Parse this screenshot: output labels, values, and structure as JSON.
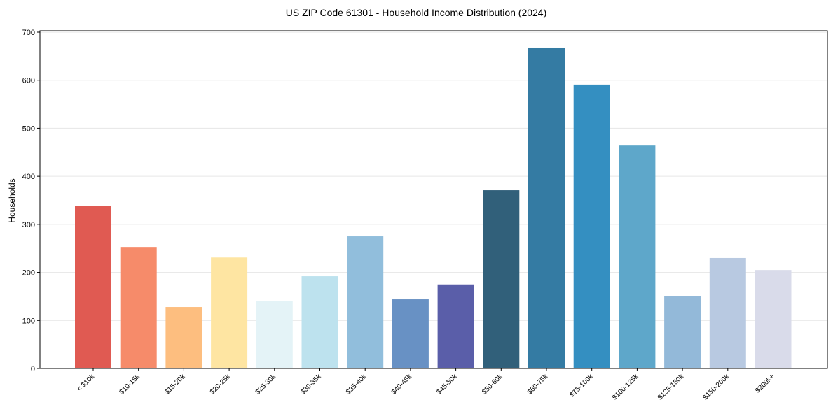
{
  "chart_data": {
    "type": "bar",
    "title": "US ZIP Code 61301 - Household Income Distribution (2024)",
    "xlabel": "",
    "ylabel": "Households",
    "ylim": [
      0,
      700
    ],
    "yticks": [
      0,
      100,
      200,
      300,
      400,
      500,
      600,
      700
    ],
    "grid": "y",
    "categories": [
      "< $10k",
      "$10-15k",
      "$15-20k",
      "$20-25k",
      "$25-30k",
      "$30-35k",
      "$35-40k",
      "$40-45k",
      "$45-50k",
      "$50-60k",
      "$60-75k",
      "$75-100k",
      "$100-125k",
      "$125-150k",
      "$150-200k",
      "$200k+"
    ],
    "values": [
      339,
      253,
      128,
      231,
      141,
      192,
      275,
      144,
      175,
      371,
      668,
      591,
      464,
      151,
      230,
      205
    ],
    "colors": [
      "#e05a52",
      "#f68b6a",
      "#fdbe7f",
      "#fee5a2",
      "#e4f3f7",
      "#bde2ee",
      "#91bedc",
      "#6891c4",
      "#5a5ea9",
      "#31607a",
      "#347ba3",
      "#348fc1",
      "#5ea7ca",
      "#93b9d9",
      "#b8c9e1",
      "#d9dbea"
    ]
  }
}
